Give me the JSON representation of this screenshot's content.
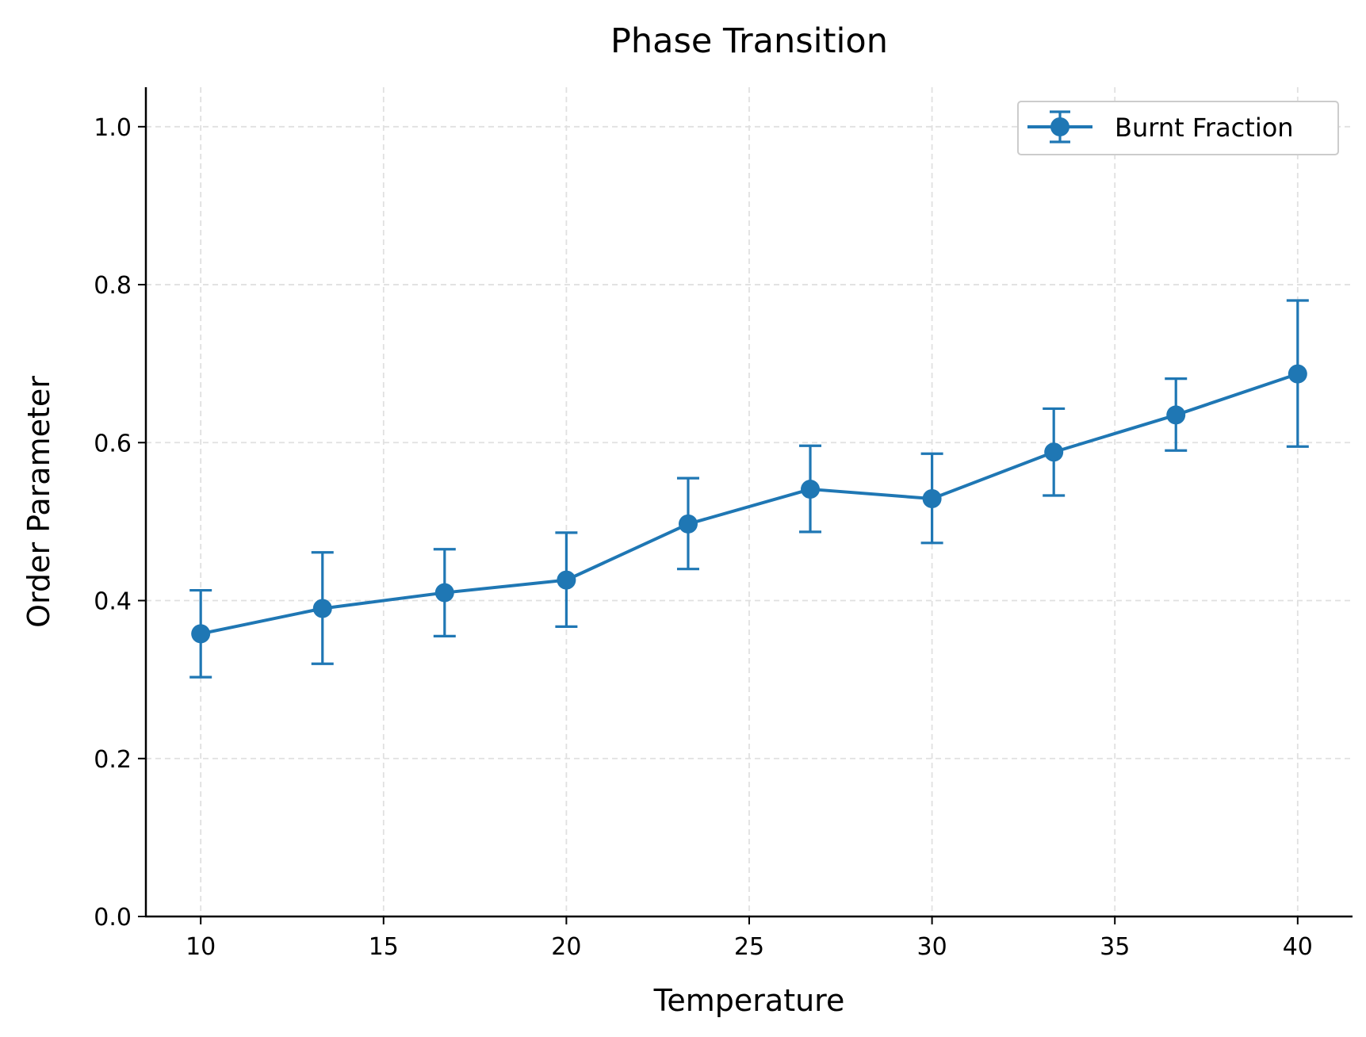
{
  "chart_data": {
    "type": "line",
    "title": "Phase Transition",
    "xlabel": "Temperature",
    "ylabel": "Order Parameter",
    "xlim": [
      8.5,
      41.5
    ],
    "ylim": [
      0.0,
      1.05
    ],
    "xticks": [
      10,
      15,
      20,
      25,
      30,
      35,
      40
    ],
    "xtick_labels": [
      "10",
      "15",
      "20",
      "25",
      "30",
      "35",
      "40"
    ],
    "yticks": [
      0.0,
      0.2,
      0.4,
      0.6,
      0.8,
      1.0
    ],
    "ytick_labels": [
      "0.0",
      "0.2",
      "0.4",
      "0.6",
      "0.8",
      "1.0"
    ],
    "grid": true,
    "legend_position": "top-right",
    "series": [
      {
        "name": "Burnt Fraction",
        "color": "#1f77b4",
        "x": [
          10.0,
          13.33,
          16.67,
          20.0,
          23.33,
          26.67,
          30.0,
          33.33,
          36.67,
          40.0
        ],
        "y": [
          0.358,
          0.39,
          0.41,
          0.426,
          0.497,
          0.541,
          0.529,
          0.588,
          0.635,
          0.687
        ],
        "yerr_low": [
          0.303,
          0.32,
          0.355,
          0.367,
          0.44,
          0.487,
          0.473,
          0.533,
          0.59,
          0.595
        ],
        "yerr_high": [
          0.413,
          0.461,
          0.465,
          0.486,
          0.555,
          0.596,
          0.586,
          0.643,
          0.681,
          0.78
        ]
      }
    ]
  }
}
